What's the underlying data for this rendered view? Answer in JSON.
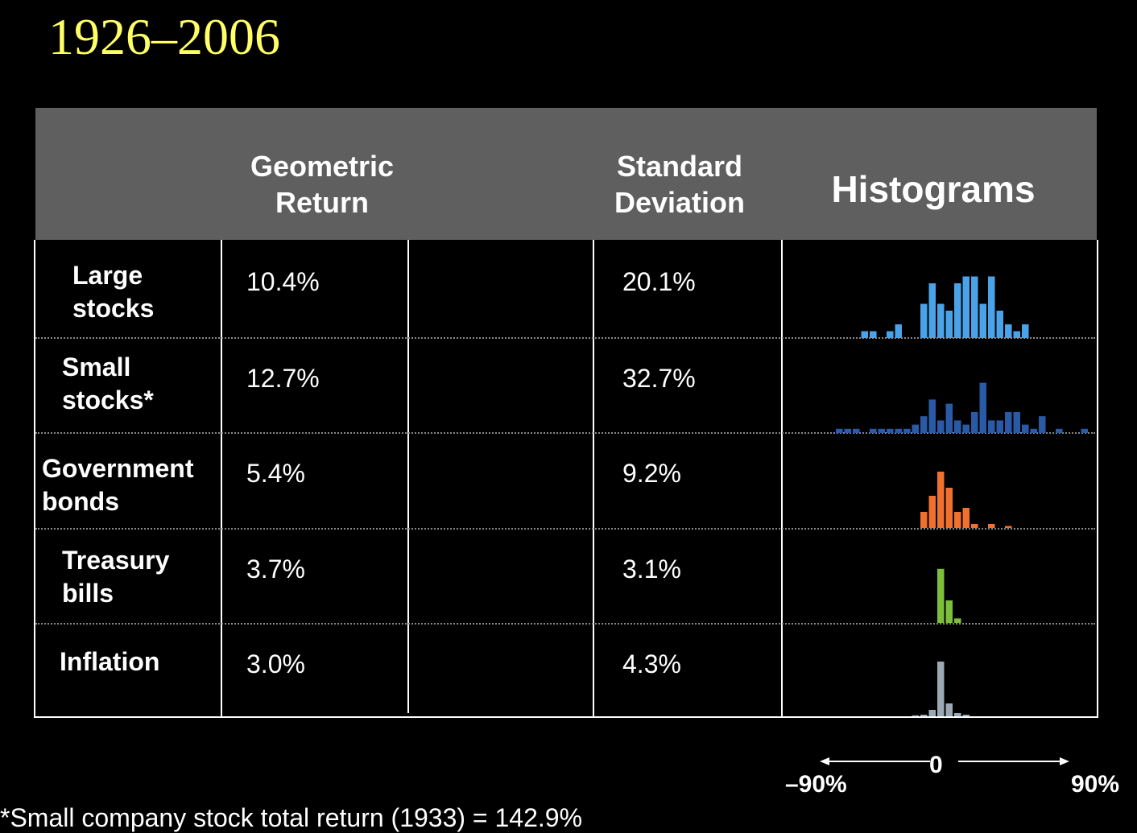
{
  "title": "1926–2006",
  "table": {
    "headers": {
      "geometric_line1": "Geometric",
      "geometric_line2": "Return",
      "std_line1": "Standard",
      "std_line2": "Deviation",
      "histograms": "Histograms"
    },
    "rows": [
      {
        "label_line1": "Large",
        "label_line2": "stocks",
        "geometric_return": "10.4%",
        "std_dev": "20.1%"
      },
      {
        "label_line1": "Small",
        "label_line2": "stocks*",
        "geometric_return": "12.7%",
        "std_dev": "32.7%"
      },
      {
        "label_line1": "Government",
        "label_line2": "bonds",
        "geometric_return": "5.4%",
        "std_dev": "9.2%"
      },
      {
        "label_line1": "Treasury",
        "label_line2": "bills",
        "geometric_return": "3.7%",
        "std_dev": "3.1%"
      },
      {
        "label_line1": "Inflation",
        "label_line2": "",
        "geometric_return": "3.0%",
        "std_dev": "4.3%"
      }
    ]
  },
  "axis": {
    "zero": "0",
    "min_label": "–90%",
    "max_label": "90%"
  },
  "footnote": "*Small company stock total return (1933) = 142.9%",
  "chart_data": {
    "type": "bar",
    "x_range": [
      -90,
      90
    ],
    "bin_width": 5,
    "series": [
      {
        "name": "Large stocks",
        "color": "#4aa3e8",
        "bins": [
          -45,
          -40,
          -30,
          -25,
          -10,
          -5,
          0,
          5,
          10,
          15,
          20,
          25,
          30,
          35,
          40,
          45,
          50
        ],
        "counts": [
          1,
          1,
          1,
          2,
          5,
          8,
          5,
          4,
          8,
          9,
          9,
          5,
          9,
          4,
          2,
          1,
          2
        ]
      },
      {
        "name": "Small stocks*",
        "color": "#2a5aa6",
        "bins": [
          -60,
          -55,
          -50,
          -40,
          -35,
          -30,
          -25,
          -20,
          -15,
          -10,
          -5,
          0,
          5,
          10,
          15,
          20,
          25,
          30,
          35,
          40,
          45,
          50,
          55,
          60,
          70,
          85
        ],
        "counts": [
          1,
          1,
          1,
          1,
          1,
          1,
          1,
          1,
          2,
          4,
          8,
          3,
          7,
          3,
          2,
          5,
          12,
          3,
          3,
          5,
          5,
          2,
          1,
          4,
          1,
          1
        ]
      },
      {
        "name": "Government bonds",
        "color": "#f07030",
        "bins": [
          -10,
          -5,
          0,
          5,
          10,
          15,
          20,
          30,
          40
        ],
        "counts": [
          4,
          8,
          14,
          10,
          4,
          5,
          1,
          1,
          0.5
        ]
      },
      {
        "name": "Treasury bills",
        "color": "#7cbf3a",
        "bins": [
          0,
          5,
          10
        ],
        "counts": [
          12,
          5,
          1
        ]
      },
      {
        "name": "Inflation",
        "color": "#9aa9b3",
        "bins": [
          -15,
          -10,
          -5,
          0,
          5,
          10,
          15
        ],
        "counts": [
          0.3,
          0.5,
          2,
          17,
          4,
          1,
          0.5
        ]
      }
    ]
  }
}
